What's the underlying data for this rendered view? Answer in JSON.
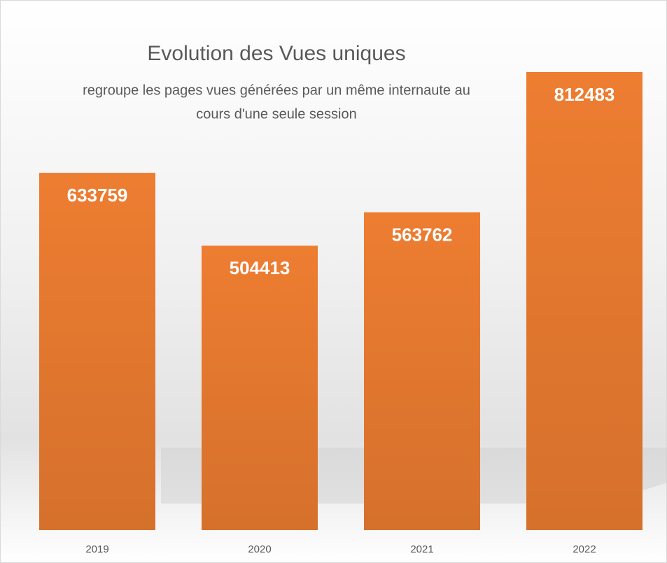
{
  "chart_data": {
    "type": "bar",
    "title": "Evolution des Vues uniques",
    "subtitle": [
      "regroupe les pages vues générées par un même internaute au",
      "cours d'une seule session"
    ],
    "categories": [
      "2019",
      "2020",
      "2021",
      "2022"
    ],
    "values": [
      633759,
      504413,
      563762,
      812483
    ],
    "color": "#ED7D31"
  }
}
